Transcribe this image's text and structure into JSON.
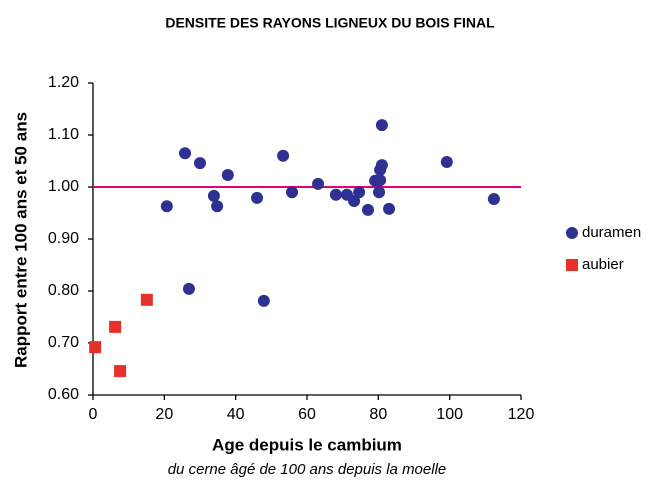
{
  "chart_data": {
    "type": "scatter",
    "title": "DENSITE DES RAYONS LIGNEUX DU BOIS FINAL",
    "xlabel": "Age depuis le cambium",
    "subtitle": "du cerne âgé de 100 ans depuis la moelle",
    "ylabel": "Rapport entre 100 ans et 50 ans",
    "xlim": [
      0,
      120
    ],
    "xticks": [
      0,
      20,
      40,
      60,
      80,
      100,
      120
    ],
    "ylim": [
      0.6,
      1.2
    ],
    "yticks": [
      {
        "value": 0.6,
        "label": "0.60"
      },
      {
        "value": 0.7,
        "label": "0.70"
      },
      {
        "value": 0.8,
        "label": "0.80"
      },
      {
        "value": 0.9,
        "label": "0.90"
      },
      {
        "value": 1.0,
        "label": "1.00"
      },
      {
        "value": 1.1,
        "label": "1.10"
      },
      {
        "value": 1.2,
        "label": "1.20"
      }
    ],
    "hline": {
      "value": 1.0,
      "color": "#e6007e"
    },
    "legend": "right",
    "series": [
      {
        "name": "duramen",
        "color": "#2e3192",
        "marker": "circle",
        "x": [
          20.7,
          25.8,
          30,
          26.9,
          33.9,
          34.8,
          37.8,
          46,
          47.9,
          53.3,
          55.8,
          63.1,
          68.1,
          71.2,
          73.2,
          74.6,
          77.1,
          79.1,
          80.5,
          80.5,
          80.2,
          81,
          81,
          83,
          99.2,
          112.4
        ],
        "values": [
          0.963,
          1.065,
          1.046,
          0.804,
          0.983,
          0.963,
          1.023,
          0.979,
          0.781,
          1.06,
          0.99,
          1.006,
          0.985,
          0.985,
          0.973,
          0.99,
          0.956,
          1.012,
          1.013,
          1.033,
          0.99,
          1.042,
          1.119,
          0.958,
          1.048,
          0.977
        ]
      },
      {
        "name": "aubier",
        "color": "#e8302a",
        "marker": "square",
        "x": [
          0.6,
          6.2,
          7.6,
          15.1
        ],
        "values": [
          0.692,
          0.731,
          0.646,
          0.783
        ]
      }
    ]
  }
}
